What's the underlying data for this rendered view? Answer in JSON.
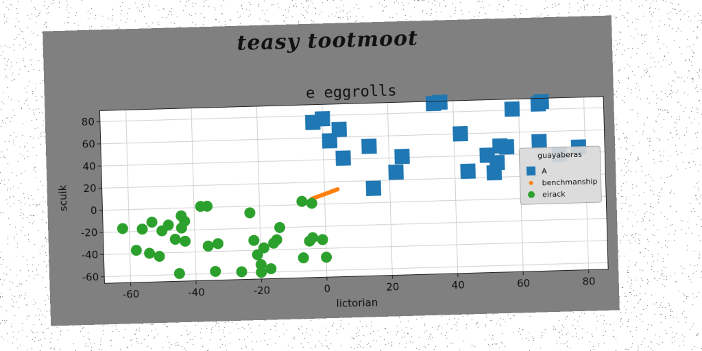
{
  "figure": {
    "suptitle": "teasy tootmoot",
    "background": "#808080"
  },
  "chart_data": {
    "type": "scatter",
    "title": "e eggrolls",
    "xlabel": "lictorian",
    "ylabel": "scuik",
    "xlim": [
      -68,
      86
    ],
    "ylim": [
      -66,
      90
    ],
    "xticks": [
      -60,
      -40,
      -20,
      0,
      20,
      40,
      60,
      80
    ],
    "yticks": [
      -60,
      -40,
      -20,
      0,
      20,
      40,
      60,
      80
    ],
    "grid": true,
    "legend": {
      "title": "guayaberas",
      "placement": "right"
    },
    "series": [
      {
        "name": "A",
        "marker": "square",
        "color": "#1f77b4",
        "points": [
          [
            -3,
            74
          ],
          [
            0,
            77
          ],
          [
            5,
            67
          ],
          [
            2,
            57
          ],
          [
            6,
            41
          ],
          [
            14,
            51
          ],
          [
            15,
            13
          ],
          [
            22,
            27
          ],
          [
            24,
            41
          ],
          [
            34,
            88
          ],
          [
            36,
            89
          ],
          [
            42,
            60
          ],
          [
            44,
            26
          ],
          [
            50,
            40
          ],
          [
            52,
            24
          ],
          [
            53,
            33
          ],
          [
            54,
            48
          ],
          [
            56,
            47
          ],
          [
            58,
            81
          ],
          [
            66,
            85
          ],
          [
            67,
            87
          ],
          [
            66,
            51
          ],
          [
            72,
            39
          ],
          [
            78,
            45
          ]
        ]
      },
      {
        "name": "benchmanship",
        "marker": "line",
        "color": "#ff7f0e",
        "points": [
          [
            -4,
            5
          ],
          [
            -3,
            6
          ],
          [
            -2,
            7
          ],
          [
            -1,
            8
          ],
          [
            0,
            9
          ],
          [
            1,
            10
          ],
          [
            2,
            11
          ],
          [
            3,
            12
          ],
          [
            4,
            13
          ]
        ]
      },
      {
        "name": "eirack",
        "marker": "circle",
        "color": "#2ca02c",
        "points": [
          [
            -62,
            -17
          ],
          [
            -58,
            -37
          ],
          [
            -56,
            -18
          ],
          [
            -54,
            -40
          ],
          [
            -53,
            -12
          ],
          [
            -51,
            -43
          ],
          [
            -50,
            -20
          ],
          [
            -48,
            -15
          ],
          [
            -46,
            -28
          ],
          [
            -45,
            -59
          ],
          [
            -44,
            -7
          ],
          [
            -44,
            -18
          ],
          [
            -43,
            -12
          ],
          [
            -43,
            -30
          ],
          [
            -38,
            1
          ],
          [
            -36,
            1
          ],
          [
            -36,
            -35
          ],
          [
            -34,
            -58
          ],
          [
            -33,
            -33
          ],
          [
            -26,
            -59
          ],
          [
            -23,
            -6
          ],
          [
            -22,
            -31
          ],
          [
            -21,
            -44
          ],
          [
            -20,
            -60
          ],
          [
            -20,
            -53
          ],
          [
            -19,
            -38
          ],
          [
            -17,
            -57
          ],
          [
            -16,
            -34
          ],
          [
            -15,
            -31
          ],
          [
            -14,
            -20
          ],
          [
            -7,
            3
          ],
          [
            -7,
            -48
          ],
          [
            -5,
            -33
          ],
          [
            -4,
            -30
          ],
          [
            -4,
            1
          ],
          [
            -1,
            -32
          ],
          [
            0,
            -48
          ]
        ]
      }
    ]
  }
}
